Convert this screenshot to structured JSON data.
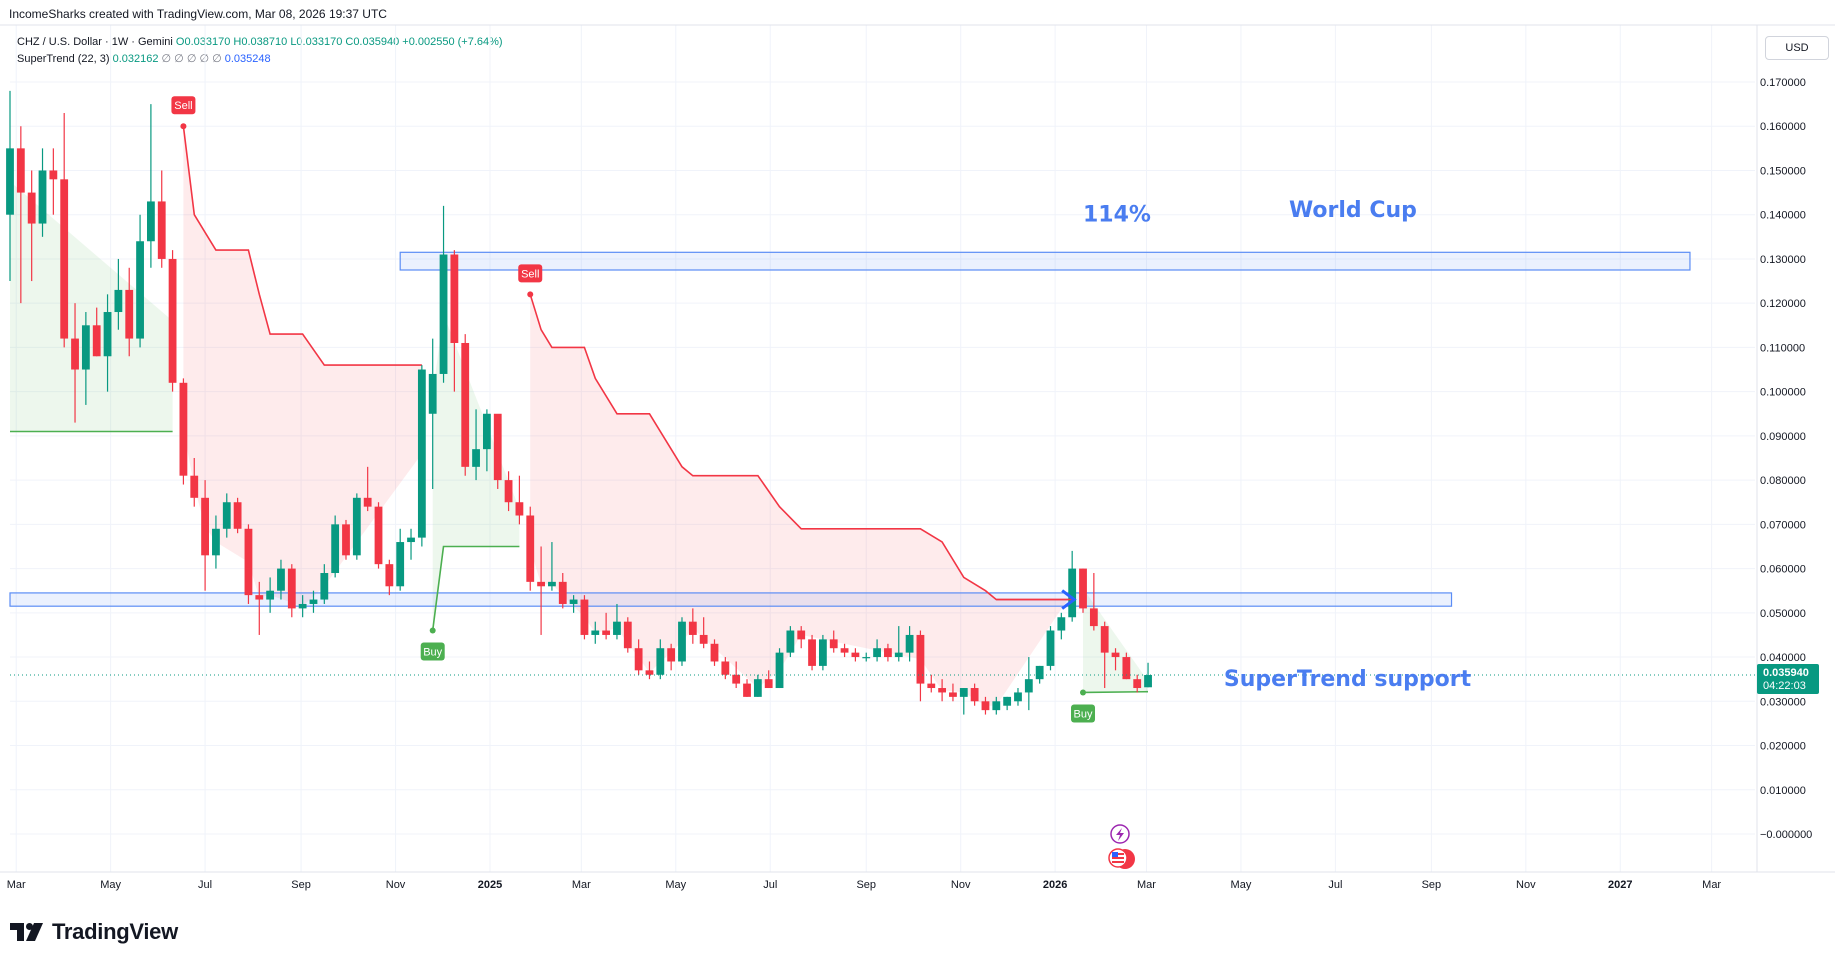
{
  "header": {
    "credit": "IncomeSharks created with TradingView.com, Mar 08, 2026 19:37 UTC"
  },
  "legend": {
    "symbol": "CHZ / U.S. Dollar · 1W · Gemini",
    "open": "O0.033170",
    "high": "H0.038710",
    "low": "L0.033170",
    "close": "C0.035940",
    "change": "+0.002550 (+7.64%)",
    "indicator": "SuperTrend (22, 3)",
    "indicator_value": "0.032162",
    "indicator_blanks": "∅ ∅ ∅ ∅ ∅",
    "indicator_value2": "0.035248"
  },
  "currency": "USD",
  "price_badge": {
    "price": "0.035940",
    "countdown": "04:22:03"
  },
  "brand": {
    "name": "TradingView"
  },
  "colors": {
    "up": "#089981",
    "down": "#f23645",
    "supertrend_up": "#4caf50",
    "supertrend_down": "#f23645",
    "annotation": "#4a7df0",
    "zone_border": "#5b8df5"
  },
  "chart_data": {
    "type": "candlestick",
    "title": "CHZ / U.S. Dollar · 1W · Gemini",
    "ylim": [
      -0.003,
      0.174
    ],
    "y_ticks": [
      "0.170000",
      "0.160000",
      "0.150000",
      "0.140000",
      "0.130000",
      "0.120000",
      "0.110000",
      "0.100000",
      "0.090000",
      "0.080000",
      "0.070000",
      "0.060000",
      "0.050000",
      "0.040000",
      "0.030000",
      "0.020000",
      "0.010000",
      "−0.000000"
    ],
    "y_tick_values": [
      0.17,
      0.16,
      0.15,
      0.14,
      0.13,
      0.12,
      0.11,
      0.1,
      0.09,
      0.08,
      0.07,
      0.06,
      0.05,
      0.04,
      0.03,
      0.02,
      0.01,
      0.0
    ],
    "x_ticks": [
      "Mar",
      "May",
      "Jul",
      "Sep",
      "Nov",
      "2025",
      "Mar",
      "May",
      "Jul",
      "Sep",
      "Nov",
      "2026",
      "Mar",
      "May",
      "Jul",
      "Sep",
      "Nov",
      "2027",
      "Mar"
    ],
    "x_tick_dates": [
      "2024-03-01",
      "2024-05-01",
      "2024-07-01",
      "2024-09-01",
      "2024-11-01",
      "2025-01-01",
      "2025-03-01",
      "2025-05-01",
      "2025-07-01",
      "2025-09-01",
      "2025-11-01",
      "2026-01-01",
      "2026-03-01",
      "2026-05-01",
      "2026-07-01",
      "2026-09-01",
      "2026-11-01",
      "2027-01-01",
      "2027-03-01"
    ],
    "x_range": [
      "2024-02-26",
      "2027-03-29"
    ],
    "grid": true,
    "last_price": 0.03594,
    "candles": [
      {
        "t": "2024-02-26",
        "o": 0.14,
        "h": 0.168,
        "l": 0.125,
        "c": 0.155
      },
      {
        "t": "2024-03-04",
        "o": 0.155,
        "h": 0.16,
        "l": 0.12,
        "c": 0.145
      },
      {
        "t": "2024-03-11",
        "o": 0.145,
        "h": 0.15,
        "l": 0.125,
        "c": 0.138
      },
      {
        "t": "2024-03-18",
        "o": 0.138,
        "h": 0.155,
        "l": 0.135,
        "c": 0.15
      },
      {
        "t": "2024-03-25",
        "o": 0.15,
        "h": 0.155,
        "l": 0.14,
        "c": 0.148
      },
      {
        "t": "2024-04-01",
        "o": 0.148,
        "h": 0.163,
        "l": 0.11,
        "c": 0.112
      },
      {
        "t": "2024-04-08",
        "o": 0.112,
        "h": 0.12,
        "l": 0.093,
        "c": 0.105
      },
      {
        "t": "2024-04-15",
        "o": 0.105,
        "h": 0.118,
        "l": 0.097,
        "c": 0.115
      },
      {
        "t": "2024-04-22",
        "o": 0.115,
        "h": 0.119,
        "l": 0.108,
        "c": 0.108
      },
      {
        "t": "2024-04-29",
        "o": 0.108,
        "h": 0.122,
        "l": 0.1,
        "c": 0.118
      },
      {
        "t": "2024-05-06",
        "o": 0.118,
        "h": 0.13,
        "l": 0.114,
        "c": 0.123
      },
      {
        "t": "2024-05-13",
        "o": 0.123,
        "h": 0.128,
        "l": 0.108,
        "c": 0.112
      },
      {
        "t": "2024-05-20",
        "o": 0.112,
        "h": 0.14,
        "l": 0.11,
        "c": 0.134
      },
      {
        "t": "2024-05-27",
        "o": 0.134,
        "h": 0.165,
        "l": 0.128,
        "c": 0.143
      },
      {
        "t": "2024-06-03",
        "o": 0.143,
        "h": 0.15,
        "l": 0.128,
        "c": 0.13
      },
      {
        "t": "2024-06-10",
        "o": 0.13,
        "h": 0.132,
        "l": 0.1,
        "c": 0.102
      },
      {
        "t": "2024-06-17",
        "o": 0.102,
        "h": 0.103,
        "l": 0.079,
        "c": 0.081
      },
      {
        "t": "2024-06-24",
        "o": 0.081,
        "h": 0.085,
        "l": 0.074,
        "c": 0.076
      },
      {
        "t": "2024-07-01",
        "o": 0.076,
        "h": 0.08,
        "l": 0.055,
        "c": 0.063
      },
      {
        "t": "2024-07-08",
        "o": 0.063,
        "h": 0.072,
        "l": 0.06,
        "c": 0.069
      },
      {
        "t": "2024-07-15",
        "o": 0.069,
        "h": 0.077,
        "l": 0.067,
        "c": 0.075
      },
      {
        "t": "2024-07-22",
        "o": 0.075,
        "h": 0.076,
        "l": 0.068,
        "c": 0.069
      },
      {
        "t": "2024-07-29",
        "o": 0.069,
        "h": 0.07,
        "l": 0.052,
        "c": 0.054
      },
      {
        "t": "2024-08-05",
        "o": 0.054,
        "h": 0.057,
        "l": 0.045,
        "c": 0.053
      },
      {
        "t": "2024-08-12",
        "o": 0.053,
        "h": 0.058,
        "l": 0.05,
        "c": 0.055
      },
      {
        "t": "2024-08-19",
        "o": 0.055,
        "h": 0.062,
        "l": 0.053,
        "c": 0.06
      },
      {
        "t": "2024-08-26",
        "o": 0.06,
        "h": 0.061,
        "l": 0.049,
        "c": 0.051
      },
      {
        "t": "2024-09-02",
        "o": 0.051,
        "h": 0.054,
        "l": 0.049,
        "c": 0.052
      },
      {
        "t": "2024-09-09",
        "o": 0.052,
        "h": 0.055,
        "l": 0.05,
        "c": 0.053
      },
      {
        "t": "2024-09-16",
        "o": 0.053,
        "h": 0.061,
        "l": 0.052,
        "c": 0.059
      },
      {
        "t": "2024-09-23",
        "o": 0.059,
        "h": 0.072,
        "l": 0.058,
        "c": 0.07
      },
      {
        "t": "2024-09-30",
        "o": 0.07,
        "h": 0.071,
        "l": 0.062,
        "c": 0.063
      },
      {
        "t": "2024-10-07",
        "o": 0.063,
        "h": 0.077,
        "l": 0.062,
        "c": 0.076
      },
      {
        "t": "2024-10-14",
        "o": 0.076,
        "h": 0.083,
        "l": 0.073,
        "c": 0.074
      },
      {
        "t": "2024-10-21",
        "o": 0.074,
        "h": 0.075,
        "l": 0.06,
        "c": 0.061
      },
      {
        "t": "2024-10-28",
        "o": 0.061,
        "h": 0.062,
        "l": 0.054,
        "c": 0.056
      },
      {
        "t": "2024-11-04",
        "o": 0.056,
        "h": 0.069,
        "l": 0.055,
        "c": 0.066
      },
      {
        "t": "2024-11-11",
        "o": 0.066,
        "h": 0.069,
        "l": 0.062,
        "c": 0.067
      },
      {
        "t": "2024-11-18",
        "o": 0.067,
        "h": 0.106,
        "l": 0.065,
        "c": 0.105
      },
      {
        "t": "2024-11-25",
        "o": 0.095,
        "h": 0.112,
        "l": 0.078,
        "c": 0.104
      },
      {
        "t": "2024-12-02",
        "o": 0.104,
        "h": 0.142,
        "l": 0.102,
        "c": 0.131
      },
      {
        "t": "2024-12-09",
        "o": 0.131,
        "h": 0.132,
        "l": 0.1,
        "c": 0.111
      },
      {
        "t": "2024-12-16",
        "o": 0.111,
        "h": 0.113,
        "l": 0.081,
        "c": 0.083
      },
      {
        "t": "2024-12-23",
        "o": 0.083,
        "h": 0.096,
        "l": 0.08,
        "c": 0.087
      },
      {
        "t": "2024-12-30",
        "o": 0.087,
        "h": 0.096,
        "l": 0.082,
        "c": 0.095
      },
      {
        "t": "2025-01-06",
        "o": 0.095,
        "h": 0.094,
        "l": 0.078,
        "c": 0.08
      },
      {
        "t": "2025-01-13",
        "o": 0.08,
        "h": 0.082,
        "l": 0.073,
        "c": 0.075
      },
      {
        "t": "2025-01-20",
        "o": 0.075,
        "h": 0.081,
        "l": 0.07,
        "c": 0.072
      },
      {
        "t": "2025-01-27",
        "o": 0.072,
        "h": 0.074,
        "l": 0.055,
        "c": 0.057
      },
      {
        "t": "2025-02-03",
        "o": 0.057,
        "h": 0.065,
        "l": 0.045,
        "c": 0.056
      },
      {
        "t": "2025-02-10",
        "o": 0.056,
        "h": 0.066,
        "l": 0.055,
        "c": 0.057
      },
      {
        "t": "2025-02-17",
        "o": 0.057,
        "h": 0.059,
        "l": 0.051,
        "c": 0.052
      },
      {
        "t": "2025-02-24",
        "o": 0.052,
        "h": 0.054,
        "l": 0.05,
        "c": 0.053
      },
      {
        "t": "2025-03-03",
        "o": 0.053,
        "h": 0.054,
        "l": 0.044,
        "c": 0.045
      },
      {
        "t": "2025-03-10",
        "o": 0.045,
        "h": 0.048,
        "l": 0.043,
        "c": 0.046
      },
      {
        "t": "2025-03-17",
        "o": 0.046,
        "h": 0.05,
        "l": 0.044,
        "c": 0.045
      },
      {
        "t": "2025-03-24",
        "o": 0.045,
        "h": 0.052,
        "l": 0.044,
        "c": 0.048
      },
      {
        "t": "2025-03-31",
        "o": 0.048,
        "h": 0.049,
        "l": 0.041,
        "c": 0.042
      },
      {
        "t": "2025-04-07",
        "o": 0.042,
        "h": 0.044,
        "l": 0.036,
        "c": 0.037
      },
      {
        "t": "2025-04-14",
        "o": 0.037,
        "h": 0.039,
        "l": 0.035,
        "c": 0.036
      },
      {
        "t": "2025-04-21",
        "o": 0.036,
        "h": 0.044,
        "l": 0.035,
        "c": 0.042
      },
      {
        "t": "2025-04-28",
        "o": 0.042,
        "h": 0.043,
        "l": 0.037,
        "c": 0.039
      },
      {
        "t": "2025-05-05",
        "o": 0.039,
        "h": 0.049,
        "l": 0.038,
        "c": 0.048
      },
      {
        "t": "2025-05-12",
        "o": 0.048,
        "h": 0.051,
        "l": 0.043,
        "c": 0.045
      },
      {
        "t": "2025-05-19",
        "o": 0.045,
        "h": 0.049,
        "l": 0.042,
        "c": 0.043
      },
      {
        "t": "2025-05-26",
        "o": 0.043,
        "h": 0.044,
        "l": 0.038,
        "c": 0.039
      },
      {
        "t": "2025-06-02",
        "o": 0.039,
        "h": 0.04,
        "l": 0.035,
        "c": 0.036
      },
      {
        "t": "2025-06-09",
        "o": 0.036,
        "h": 0.039,
        "l": 0.033,
        "c": 0.034
      },
      {
        "t": "2025-06-16",
        "o": 0.034,
        "h": 0.035,
        "l": 0.031,
        "c": 0.031
      },
      {
        "t": "2025-06-23",
        "o": 0.031,
        "h": 0.036,
        "l": 0.031,
        "c": 0.035
      },
      {
        "t": "2025-06-30",
        "o": 0.035,
        "h": 0.037,
        "l": 0.033,
        "c": 0.033
      },
      {
        "t": "2025-07-07",
        "o": 0.033,
        "h": 0.042,
        "l": 0.033,
        "c": 0.041
      },
      {
        "t": "2025-07-14",
        "o": 0.041,
        "h": 0.047,
        "l": 0.04,
        "c": 0.046
      },
      {
        "t": "2025-07-21",
        "o": 0.046,
        "h": 0.047,
        "l": 0.042,
        "c": 0.044
      },
      {
        "t": "2025-07-28",
        "o": 0.044,
        "h": 0.045,
        "l": 0.037,
        "c": 0.038
      },
      {
        "t": "2025-08-04",
        "o": 0.038,
        "h": 0.045,
        "l": 0.037,
        "c": 0.044
      },
      {
        "t": "2025-08-11",
        "o": 0.044,
        "h": 0.046,
        "l": 0.041,
        "c": 0.042
      },
      {
        "t": "2025-08-18",
        "o": 0.042,
        "h": 0.043,
        "l": 0.04,
        "c": 0.041
      },
      {
        "t": "2025-08-25",
        "o": 0.041,
        "h": 0.042,
        "l": 0.039,
        "c": 0.04
      },
      {
        "t": "2025-09-01",
        "o": 0.04,
        "h": 0.041,
        "l": 0.039,
        "c": 0.04
      },
      {
        "t": "2025-09-08",
        "o": 0.04,
        "h": 0.044,
        "l": 0.039,
        "c": 0.042
      },
      {
        "t": "2025-09-15",
        "o": 0.042,
        "h": 0.043,
        "l": 0.039,
        "c": 0.04
      },
      {
        "t": "2025-09-22",
        "o": 0.04,
        "h": 0.047,
        "l": 0.039,
        "c": 0.041
      },
      {
        "t": "2025-09-29",
        "o": 0.041,
        "h": 0.047,
        "l": 0.039,
        "c": 0.045
      },
      {
        "t": "2025-10-06",
        "o": 0.045,
        "h": 0.046,
        "l": 0.03,
        "c": 0.034
      },
      {
        "t": "2025-10-13",
        "o": 0.034,
        "h": 0.036,
        "l": 0.032,
        "c": 0.033
      },
      {
        "t": "2025-10-20",
        "o": 0.033,
        "h": 0.035,
        "l": 0.03,
        "c": 0.032
      },
      {
        "t": "2025-10-27",
        "o": 0.032,
        "h": 0.034,
        "l": 0.03,
        "c": 0.031
      },
      {
        "t": "2025-11-03",
        "o": 0.031,
        "h": 0.033,
        "l": 0.027,
        "c": 0.033
      },
      {
        "t": "2025-11-10",
        "o": 0.033,
        "h": 0.034,
        "l": 0.029,
        "c": 0.03
      },
      {
        "t": "2025-11-17",
        "o": 0.03,
        "h": 0.031,
        "l": 0.027,
        "c": 0.028
      },
      {
        "t": "2025-11-24",
        "o": 0.028,
        "h": 0.031,
        "l": 0.027,
        "c": 0.03
      },
      {
        "t": "2025-12-01",
        "o": 0.029,
        "h": 0.031,
        "l": 0.028,
        "c": 0.031
      },
      {
        "t": "2025-12-08",
        "o": 0.03,
        "h": 0.033,
        "l": 0.029,
        "c": 0.032
      },
      {
        "t": "2025-12-15",
        "o": 0.032,
        "h": 0.04,
        "l": 0.028,
        "c": 0.035
      },
      {
        "t": "2025-12-22",
        "o": 0.035,
        "h": 0.038,
        "l": 0.034,
        "c": 0.038
      },
      {
        "t": "2025-12-29",
        "o": 0.038,
        "h": 0.047,
        "l": 0.037,
        "c": 0.046
      },
      {
        "t": "2026-01-05",
        "o": 0.046,
        "h": 0.05,
        "l": 0.044,
        "c": 0.049
      },
      {
        "t": "2026-01-12",
        "o": 0.049,
        "h": 0.064,
        "l": 0.048,
        "c": 0.06
      },
      {
        "t": "2026-01-19",
        "o": 0.06,
        "h": 0.06,
        "l": 0.05,
        "c": 0.051
      },
      {
        "t": "2026-01-26",
        "o": 0.051,
        "h": 0.059,
        "l": 0.046,
        "c": 0.047
      },
      {
        "t": "2026-02-02",
        "o": 0.047,
        "h": 0.048,
        "l": 0.033,
        "c": 0.041
      },
      {
        "t": "2026-02-09",
        "o": 0.041,
        "h": 0.042,
        "l": 0.037,
        "c": 0.04
      },
      {
        "t": "2026-02-16",
        "o": 0.04,
        "h": 0.041,
        "l": 0.035,
        "c": 0.035
      },
      {
        "t": "2026-02-23",
        "o": 0.035,
        "h": 0.036,
        "l": 0.032,
        "c": 0.033
      },
      {
        "t": "2026-03-02",
        "o": 0.03317,
        "h": 0.03871,
        "l": 0.03317,
        "c": 0.03594
      }
    ],
    "supertrend": [
      {
        "t": "2024-02-26",
        "v": 0.091,
        "dir": "up"
      },
      {
        "t": "2024-06-10",
        "v": 0.091,
        "dir": "up"
      },
      {
        "t": "2024-06-17",
        "v": 0.16,
        "dir": "down"
      },
      {
        "t": "2024-06-24",
        "v": 0.14,
        "dir": "down"
      },
      {
        "t": "2024-07-01",
        "v": 0.136,
        "dir": "down"
      },
      {
        "t": "2024-07-08",
        "v": 0.132,
        "dir": "down"
      },
      {
        "t": "2024-07-29",
        "v": 0.132,
        "dir": "down"
      },
      {
        "t": "2024-08-05",
        "v": 0.122,
        "dir": "down"
      },
      {
        "t": "2024-08-12",
        "v": 0.113,
        "dir": "down"
      },
      {
        "t": "2024-09-02",
        "v": 0.113,
        "dir": "down"
      },
      {
        "t": "2024-09-16",
        "v": 0.106,
        "dir": "down"
      },
      {
        "t": "2024-11-18",
        "v": 0.106,
        "dir": "down"
      },
      {
        "t": "2024-11-25",
        "v": 0.046,
        "dir": "up"
      },
      {
        "t": "2024-12-02",
        "v": 0.065,
        "dir": "up"
      },
      {
        "t": "2025-01-20",
        "v": 0.065,
        "dir": "up"
      },
      {
        "t": "2025-01-27",
        "v": 0.122,
        "dir": "down"
      },
      {
        "t": "2025-02-03",
        "v": 0.114,
        "dir": "down"
      },
      {
        "t": "2025-02-10",
        "v": 0.11,
        "dir": "down"
      },
      {
        "t": "2025-03-03",
        "v": 0.11,
        "dir": "down"
      },
      {
        "t": "2025-03-10",
        "v": 0.103,
        "dir": "down"
      },
      {
        "t": "2025-03-24",
        "v": 0.095,
        "dir": "down"
      },
      {
        "t": "2025-04-14",
        "v": 0.095,
        "dir": "down"
      },
      {
        "t": "2025-05-05",
        "v": 0.083,
        "dir": "down"
      },
      {
        "t": "2025-05-12",
        "v": 0.081,
        "dir": "down"
      },
      {
        "t": "2025-06-23",
        "v": 0.081,
        "dir": "down"
      },
      {
        "t": "2025-07-07",
        "v": 0.074,
        "dir": "down"
      },
      {
        "t": "2025-07-21",
        "v": 0.069,
        "dir": "down"
      },
      {
        "t": "2025-10-06",
        "v": 0.069,
        "dir": "down"
      },
      {
        "t": "2025-10-20",
        "v": 0.066,
        "dir": "down"
      },
      {
        "t": "2025-11-03",
        "v": 0.058,
        "dir": "down"
      },
      {
        "t": "2025-11-17",
        "v": 0.055,
        "dir": "down"
      },
      {
        "t": "2025-11-24",
        "v": 0.053,
        "dir": "down"
      },
      {
        "t": "2026-01-12",
        "v": 0.053,
        "dir": "down"
      },
      {
        "t": "2026-01-19",
        "v": 0.032,
        "dir": "up"
      },
      {
        "t": "2026-03-02",
        "v": 0.032162,
        "dir": "up"
      }
    ],
    "signals": [
      {
        "label": "Sell",
        "t": "2024-06-17",
        "v": 0.16,
        "type": "sell"
      },
      {
        "label": "Buy",
        "t": "2024-11-25",
        "v": 0.046,
        "type": "buy"
      },
      {
        "label": "Sell",
        "t": "2025-01-27",
        "v": 0.122,
        "type": "sell"
      },
      {
        "label": "Buy",
        "t": "2026-01-19",
        "v": 0.032,
        "type": "buy"
      }
    ],
    "zones": [
      {
        "from": "2024-11-04",
        "to": "2027-02-15",
        "low": 0.1275,
        "high": 0.1315
      },
      {
        "from": "2024-02-26",
        "to": "2026-09-14",
        "low": 0.0515,
        "high": 0.0545
      }
    ],
    "annotations": [
      {
        "text": "114%",
        "t": "2026-01-19",
        "v": 0.1385,
        "size": 22
      },
      {
        "text": "World Cup",
        "t": "2026-06-01",
        "v": 0.1395,
        "size": 22
      },
      {
        "text": "SuperTrend support",
        "t": "2026-04-20",
        "v": 0.0335,
        "size": 22
      }
    ],
    "arrow": {
      "from_t": "2025-11-24",
      "to_t": "2026-01-12",
      "v": 0.053
    }
  }
}
